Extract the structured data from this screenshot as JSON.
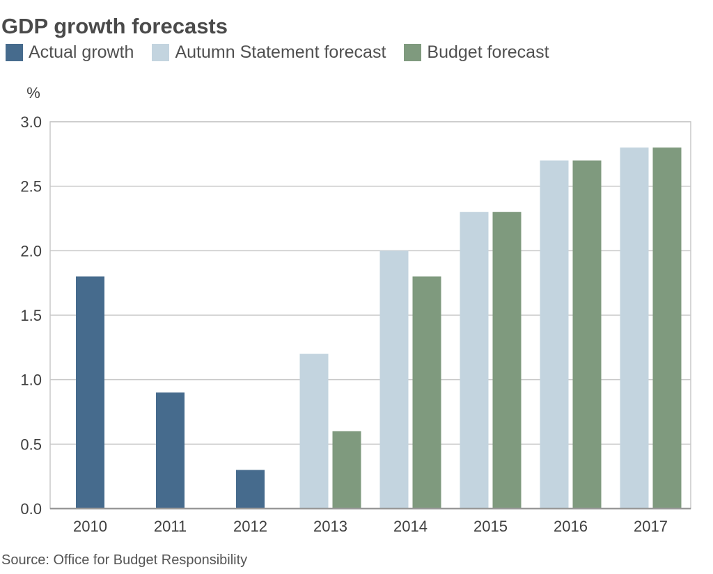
{
  "chart_data": {
    "type": "bar",
    "title": "GDP growth forecasts",
    "ylabel": "%",
    "xlabel": "",
    "ylim": [
      0,
      3.0
    ],
    "yticks": [
      "0.0",
      "0.5",
      "1.0",
      "1.5",
      "2.0",
      "2.5",
      "3.0"
    ],
    "grid": true,
    "legend_position": "top",
    "categories": [
      "2010",
      "2011",
      "2012",
      "2013",
      "2014",
      "2015",
      "2016",
      "2017"
    ],
    "series": [
      {
        "name": "Actual growth",
        "color": "#466b8d",
        "values": [
          1.8,
          0.9,
          0.3,
          null,
          null,
          null,
          null,
          null
        ]
      },
      {
        "name": "Autumn Statement forecast",
        "color": "#c3d4df",
        "values": [
          null,
          null,
          null,
          1.2,
          2.0,
          2.3,
          2.7,
          2.8
        ]
      },
      {
        "name": "Budget forecast",
        "color": "#7f9a7e",
        "values": [
          null,
          null,
          null,
          0.6,
          1.8,
          2.3,
          2.7,
          2.8
        ]
      }
    ],
    "source": "Source: Office for Budget Responsibility"
  }
}
